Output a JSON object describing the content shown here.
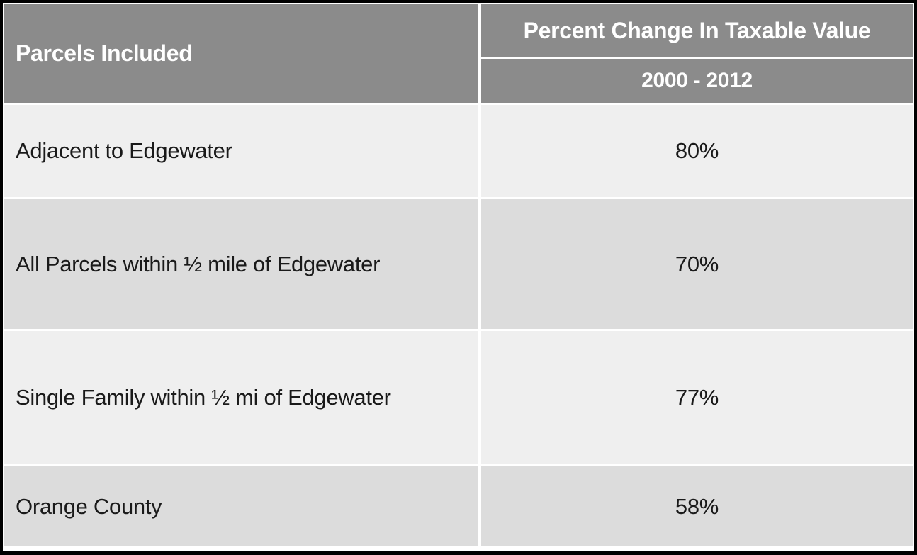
{
  "table": {
    "header": {
      "col1": "Parcels Included",
      "col2_title": "Percent Change In Taxable Value",
      "col2_subtitle": "2000 - 2012"
    },
    "rows": [
      {
        "label": "Adjacent to Edgewater",
        "value": "80%"
      },
      {
        "label": "All Parcels within ½ mile of Edgewater",
        "value": "70%"
      },
      {
        "label": "Single Family within ½ mi of Edgewater",
        "value": "77%"
      },
      {
        "label": "Orange County",
        "value": "58%"
      }
    ]
  },
  "colors": {
    "header_bg": "#8B8B8B",
    "header_text": "#FFFFFF",
    "row_light": "#EFEFEF",
    "row_dark": "#DCDCDC",
    "gridline": "#FFFFFF",
    "outer_border": "#000000",
    "body_text": "#1A1A1A"
  },
  "chart_data": {
    "type": "table",
    "title": "Percent Change In Taxable Value",
    "period": "2000 - 2012",
    "columns": [
      "Parcels Included",
      "Percent Change In Taxable Value 2000 - 2012"
    ],
    "categories": [
      "Adjacent to Edgewater",
      "All Parcels within ½ mile of Edgewater",
      "Single Family within ½ mi of Edgewater",
      "Orange County"
    ],
    "values": [
      80,
      70,
      77,
      58
    ],
    "value_unit": "%"
  }
}
